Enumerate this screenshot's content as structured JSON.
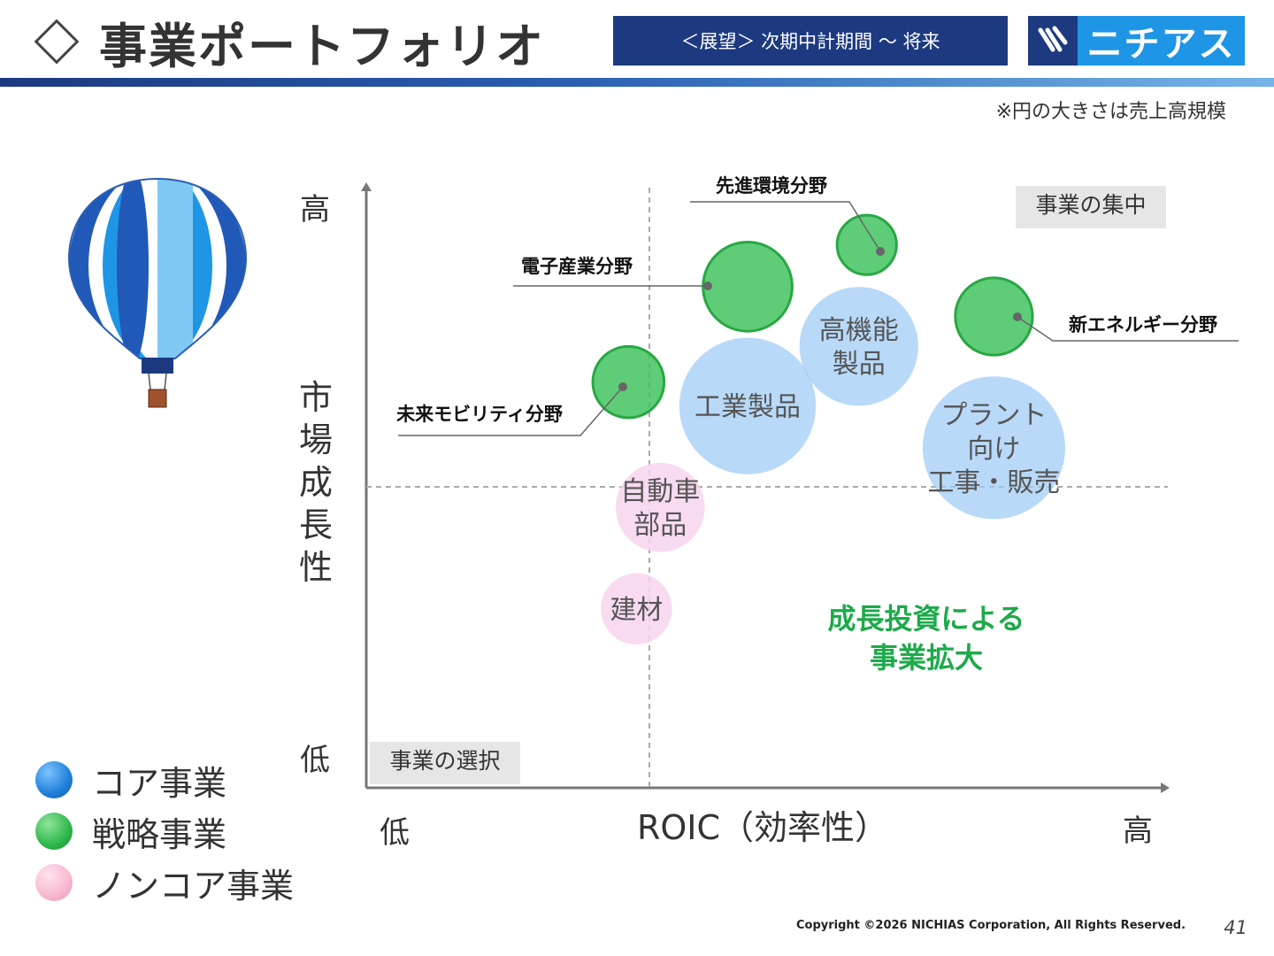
{
  "header": {
    "title": "事業ポートフォリオ",
    "breadcrumb": "＜展望＞ 次期中計期間 ～ 将来",
    "logo_text": "ニチアス"
  },
  "note": "※円の大きさは売上高規模",
  "footer": {
    "copyright": "Copyright ©2026 NICHIAS Corporation, All Rights Reserved.",
    "page": "41"
  },
  "legend": [
    {
      "label": "コア事業",
      "color": "#1f7fd8"
    },
    {
      "label": "戦略事業",
      "color": "#2db84b"
    },
    {
      "label": "ノンコア事業",
      "color": "#f7b8d0"
    }
  ],
  "colors": {
    "core": "#9ccbf5",
    "strategic": "#3cc15a",
    "noncore": "#f7d5ef",
    "growth_text": "#1daa4a"
  },
  "chart_data": {
    "type": "bubble",
    "xlabel": "ROIC（効率性）",
    "ylabel": "市場成長性",
    "x_low": "低",
    "x_high": "高",
    "y_low": "低",
    "y_high": "高",
    "quadrant_labels": {
      "top_right": "事業の集中",
      "bottom_left": "事業の選択"
    },
    "annotation": [
      "成長投資による",
      "事業拡大"
    ],
    "core": [
      {
        "name": [
          "工業製品"
        ],
        "x": 0.48,
        "y": 0.64,
        "r": 0.23
      },
      {
        "name": [
          "高機能",
          "製品"
        ],
        "x": 0.62,
        "y": 0.74,
        "r": 0.2
      },
      {
        "name": [
          "プラント",
          "向け",
          "工事・販売"
        ],
        "x": 0.79,
        "y": 0.57,
        "r": 0.24
      }
    ],
    "noncore": [
      {
        "name": [
          "自動車",
          "部品"
        ],
        "x": 0.37,
        "y": 0.47,
        "r": 0.15
      },
      {
        "name": [
          "建材"
        ],
        "x": 0.34,
        "y": 0.3,
        "r": 0.12
      }
    ],
    "strategic": [
      {
        "name": "電子産業分野",
        "x": 0.48,
        "y": 0.84,
        "r": 0.15
      },
      {
        "name": "先進環境分野",
        "x": 0.63,
        "y": 0.91,
        "r": 0.1
      },
      {
        "name": "新エネルギー分野",
        "x": 0.79,
        "y": 0.79,
        "r": 0.13
      },
      {
        "name": "未来モビリティ分野",
        "x": 0.33,
        "y": 0.68,
        "r": 0.12
      }
    ]
  }
}
